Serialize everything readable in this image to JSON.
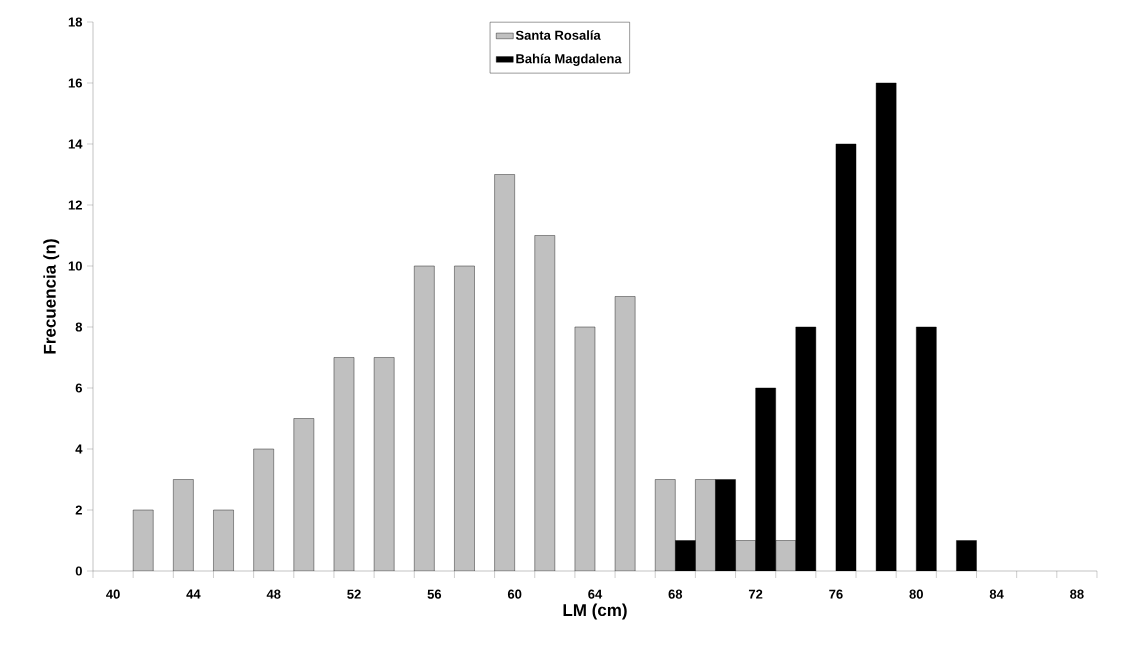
{
  "chart_data": {
    "type": "bar",
    "xlabel": "LM (cm)",
    "ylabel": "Frecuencia (n)",
    "categories": [
      "40",
      null,
      "44",
      null,
      "48",
      null,
      "52",
      null,
      "56",
      null,
      "60",
      null,
      "64",
      null,
      "68",
      null,
      "72",
      null,
      "76",
      null,
      "80",
      null,
      "84",
      null,
      "88"
    ],
    "series": [
      {
        "name": "Santa Rosalía",
        "color": "#c0c0c0",
        "values": [
          null,
          2,
          3,
          2,
          4,
          5,
          7,
          7,
          10,
          10,
          13,
          11,
          8,
          9,
          3,
          3,
          1,
          1,
          null,
          null,
          null,
          null,
          null,
          null,
          null
        ]
      },
      {
        "name": "Bahía Magdalena",
        "color": "#000000",
        "values": [
          null,
          null,
          null,
          null,
          null,
          null,
          null,
          null,
          null,
          null,
          null,
          null,
          null,
          null,
          1,
          3,
          6,
          8,
          14,
          16,
          8,
          1,
          null,
          null,
          null
        ]
      }
    ],
    "ylim": [
      0,
      18
    ],
    "yticks": [
      0,
      2,
      4,
      6,
      8,
      10,
      12,
      14,
      16,
      18
    ],
    "grid": false,
    "legend": "top"
  }
}
